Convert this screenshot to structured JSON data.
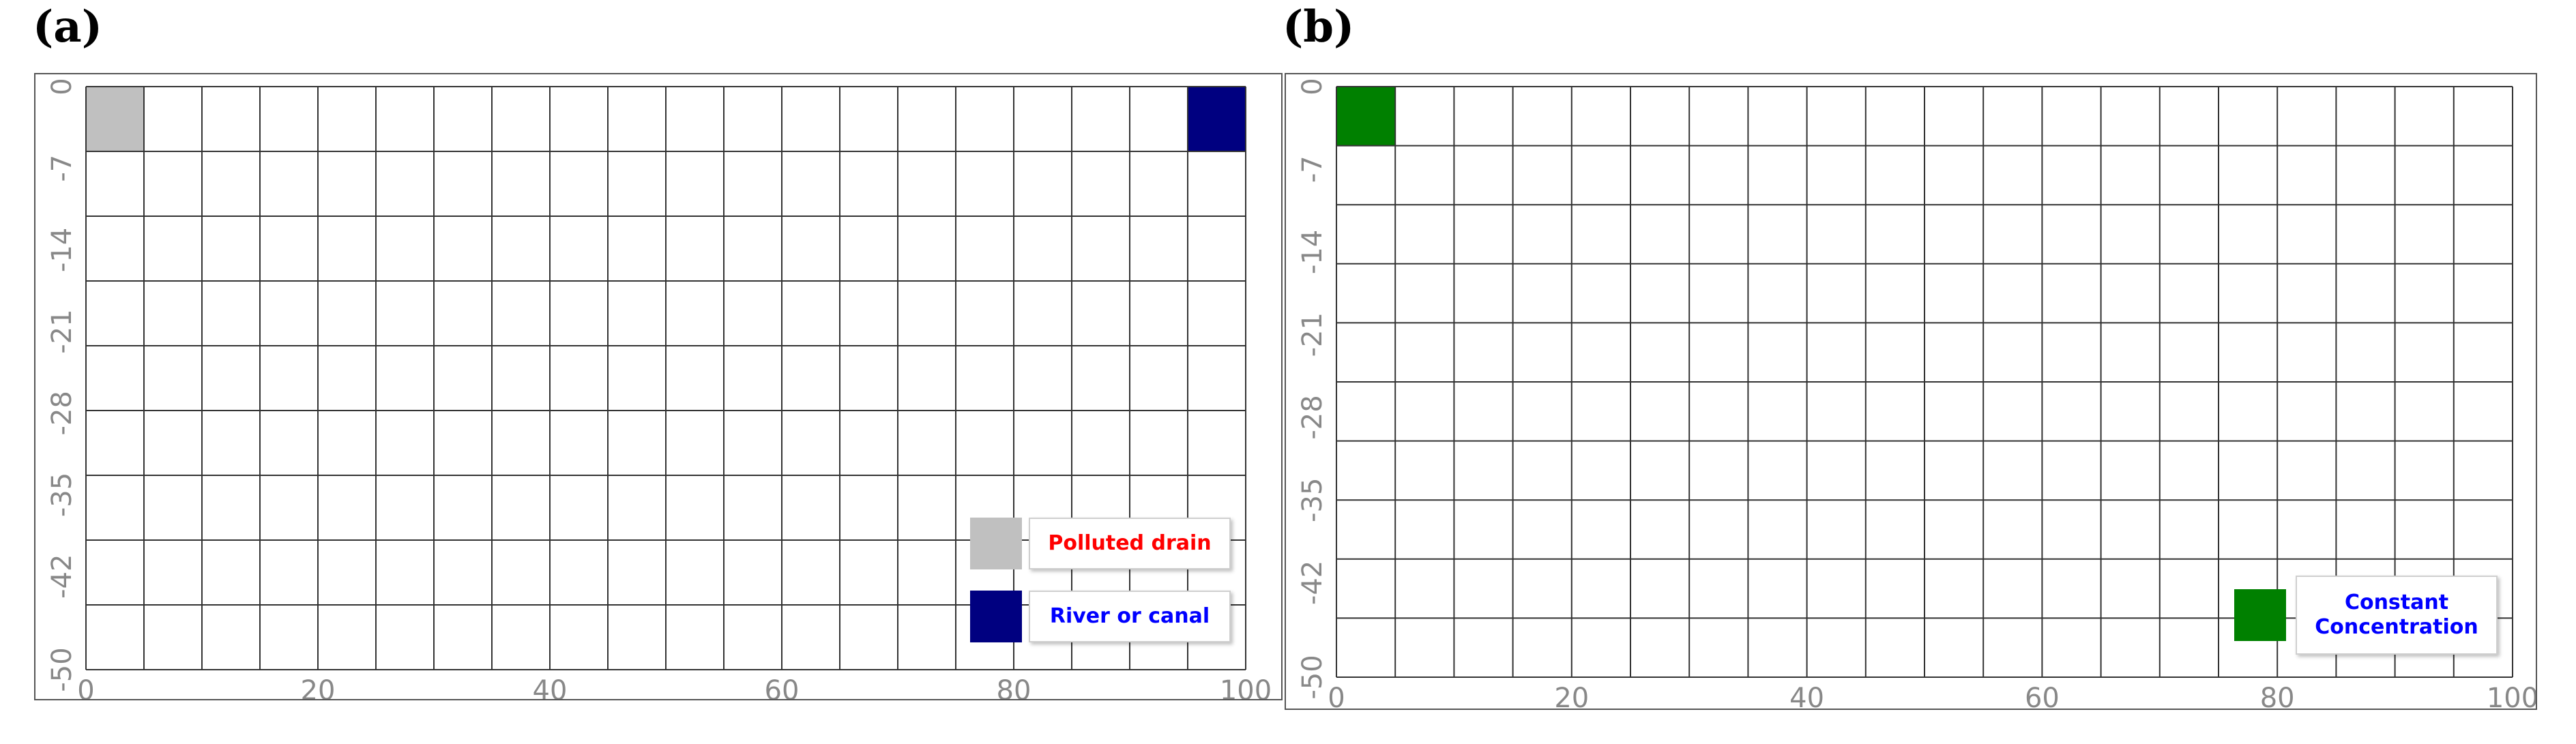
{
  "panels": [
    {
      "id": "a",
      "label": "(a)",
      "x_ticks": [
        "0",
        "20",
        "40",
        "60",
        "80",
        "100"
      ],
      "y_ticks": [
        "0",
        "-7",
        "-14",
        "-21",
        "-28",
        "-35",
        "-42",
        "-50"
      ],
      "grid": {
        "columns": 20,
        "rows": 9,
        "x_range": [
          0,
          100
        ],
        "y_range": [
          -50,
          0
        ]
      },
      "cells": [
        {
          "col": 0,
          "row": 0,
          "color": "#c0c0c0",
          "type": "Polluted drain"
        },
        {
          "col": 19,
          "row": 0,
          "color": "#000080",
          "type": "River or canal"
        }
      ],
      "legend": [
        {
          "swatch_color": "#c0c0c0",
          "text": "Polluted drain",
          "text_color": "#ff0000"
        },
        {
          "swatch_color": "#000080",
          "text": "River or canal",
          "text_color": "#0000ff"
        }
      ]
    },
    {
      "id": "b",
      "label": "(b)",
      "x_ticks": [
        "0",
        "20",
        "40",
        "60",
        "80",
        "100"
      ],
      "y_ticks": [
        "0",
        "-7",
        "-14",
        "-21",
        "-28",
        "-35",
        "-42",
        "-50"
      ],
      "grid": {
        "columns": 20,
        "rows": 10,
        "x_range": [
          0,
          100
        ],
        "y_range": [
          -50,
          0
        ]
      },
      "cells": [
        {
          "col": 0,
          "row": 0,
          "color": "#008000",
          "type": "Constant Concentration"
        }
      ],
      "legend": [
        {
          "swatch_color": "#008000",
          "text": "Constant Concentration",
          "text_color": "#0000ff"
        }
      ]
    }
  ]
}
